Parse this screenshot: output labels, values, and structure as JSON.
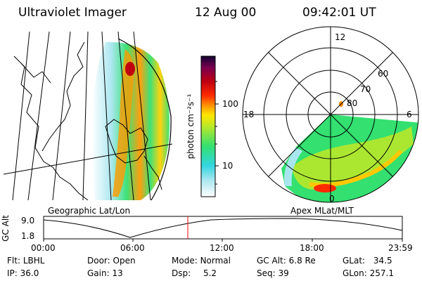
{
  "header": {
    "instrument": "Ultraviolet Imager",
    "date": "12 Aug 00",
    "time": "09:42:01 UT"
  },
  "colorbar": {
    "unit_label": "photon cm⁻²s⁻¹",
    "ticks": [
      "100",
      "10"
    ],
    "scale": "log"
  },
  "panels": {
    "geo_label": "Geographic Lat/Lon",
    "apex_label": "Apex MLat/MLT"
  },
  "polar": {
    "mlt_labels": [
      "12",
      "18",
      "6",
      "0"
    ],
    "mlat_labels": [
      "60",
      "70",
      "80"
    ]
  },
  "altitude_plot": {
    "ylabel": "GC Alt",
    "yticks": [
      "9.0",
      "1.8"
    ],
    "xticks": [
      "00:00",
      "06:00",
      "12:00",
      "18:00",
      "23:59"
    ],
    "current_time_marker": "09:42"
  },
  "status": {
    "flt": {
      "label": "Flt:",
      "value": "LBHL"
    },
    "ip": {
      "label": "IP:",
      "value": "36.0"
    },
    "door": {
      "label": "Door:",
      "value": "Open"
    },
    "gain": {
      "label": "Gain:",
      "value": "13"
    },
    "mode": {
      "label": "Mode:",
      "value": "Normal"
    },
    "dsp": {
      "label": "Dsp:",
      "value": "5.2"
    },
    "gcalt": {
      "label": "GC Alt:",
      "value": "6.8 Re"
    },
    "seq": {
      "label": "Seq:",
      "value": "39"
    },
    "glat": {
      "label": "GLat:",
      "value": "34.5"
    },
    "glon": {
      "label": "GLon:",
      "value": "257.1"
    }
  },
  "colors": {
    "accent_marker": "#ff0000",
    "scale": [
      "#ffffff",
      "#33d6e0",
      "#33e070",
      "#b8e82a",
      "#ffc800",
      "#ff8800",
      "#ff2a00",
      "#c00010",
      "#7a0050",
      "#100030"
    ]
  }
}
